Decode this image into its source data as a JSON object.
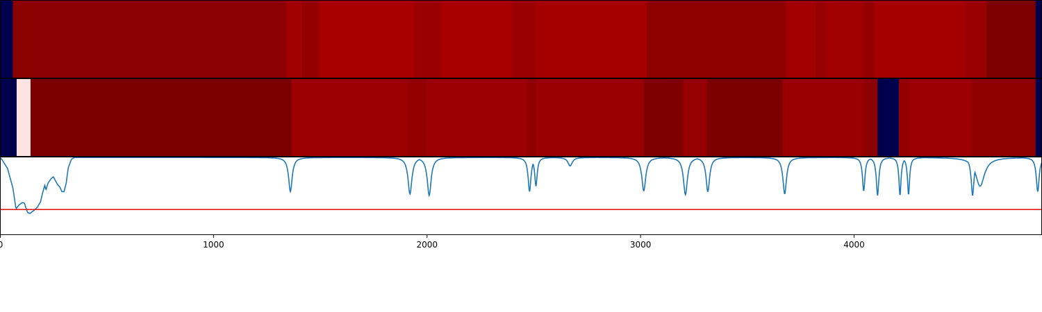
{
  "chart_data": [
    {
      "type": "heatmap",
      "title": "",
      "colormap": "seismic",
      "note": "segments: [start, end, color] along x",
      "segments": [
        [
          0,
          60,
          "#00004c"
        ],
        [
          60,
          1340,
          "#8b0000"
        ],
        [
          1340,
          1415,
          "#a00000"
        ],
        [
          1415,
          1495,
          "#930000"
        ],
        [
          1495,
          1940,
          "#a80000"
        ],
        [
          1940,
          2065,
          "#9a0000"
        ],
        [
          2065,
          2400,
          "#a80000"
        ],
        [
          2400,
          2505,
          "#9a0000"
        ],
        [
          2505,
          3030,
          "#a40000"
        ],
        [
          3030,
          3680,
          "#8c0000"
        ],
        [
          3680,
          3820,
          "#a20000"
        ],
        [
          3820,
          3865,
          "#950000"
        ],
        [
          3865,
          4045,
          "#a00000"
        ],
        [
          4045,
          4095,
          "#920000"
        ],
        [
          4095,
          4520,
          "#a50000"
        ],
        [
          4520,
          4620,
          "#990000"
        ],
        [
          4620,
          4850,
          "#7e0000"
        ],
        [
          4850,
          4880,
          "#00004c"
        ]
      ]
    },
    {
      "type": "heatmap",
      "title": "",
      "colormap": "seismic",
      "segments": [
        [
          0,
          78,
          "#00004c"
        ],
        [
          78,
          143,
          "#ffe3e3"
        ],
        [
          143,
          1365,
          "#7a0000"
        ],
        [
          1365,
          1905,
          "#9c0000"
        ],
        [
          1905,
          2000,
          "#930000"
        ],
        [
          2000,
          2470,
          "#9c0000"
        ],
        [
          2470,
          2510,
          "#8f0000"
        ],
        [
          2510,
          3015,
          "#9a0000"
        ],
        [
          3015,
          3200,
          "#7e0000"
        ],
        [
          3200,
          3310,
          "#960000"
        ],
        [
          3310,
          3665,
          "#7a0000"
        ],
        [
          3665,
          4045,
          "#9a0000"
        ],
        [
          4045,
          4110,
          "#8c0000"
        ],
        [
          4110,
          4210,
          "#00004c"
        ],
        [
          4210,
          4260,
          "#940000"
        ],
        [
          4260,
          4550,
          "#9c0000"
        ],
        [
          4550,
          4850,
          "#8f0000"
        ],
        [
          4850,
          4880,
          "#00004c"
        ]
      ]
    },
    {
      "type": "line",
      "title": "",
      "xlabel": "",
      "ylabel": "",
      "xlim": [
        0,
        4880
      ],
      "ylim": [
        0,
        1
      ],
      "xticks": [
        "0",
        "1000",
        "2000",
        "3000",
        "4000"
      ],
      "xtick_values": [
        0,
        1000,
        2000,
        3000,
        4000
      ],
      "threshold": {
        "value": 0.32,
        "color": "#e41a1c"
      },
      "series": [
        {
          "color": "#1f77b4",
          "baseline": 0.99,
          "base_segments": [
            [
              0,
              0.99
            ],
            [
              10,
              0.96
            ],
            [
              35,
              0.85
            ],
            [
              60,
              0.6
            ],
            [
              75,
              0.33
            ],
            [
              90,
              0.38
            ],
            [
              105,
              0.41
            ],
            [
              115,
              0.4
            ],
            [
              120,
              0.35
            ],
            [
              130,
              0.28
            ],
            [
              140,
              0.27
            ],
            [
              150,
              0.29
            ],
            [
              160,
              0.31
            ],
            [
              175,
              0.35
            ],
            [
              190,
              0.42
            ],
            [
              200,
              0.54
            ],
            [
              210,
              0.63
            ],
            [
              215,
              0.57
            ],
            [
              225,
              0.66
            ],
            [
              240,
              0.72
            ],
            [
              250,
              0.74
            ],
            [
              260,
              0.69
            ],
            [
              270,
              0.64
            ],
            [
              280,
              0.61
            ],
            [
              290,
              0.55
            ],
            [
              300,
              0.55
            ],
            [
              310,
              0.66
            ],
            [
              320,
              0.86
            ],
            [
              335,
              0.97
            ],
            [
              350,
              0.99
            ]
          ],
          "dips": [
            [
              1360,
              0.55,
              10
            ],
            [
              1920,
              0.52,
              11
            ],
            [
              2010,
              0.5,
              11
            ],
            [
              2480,
              0.55,
              8
            ],
            [
              2510,
              0.62,
              7
            ],
            [
              2670,
              0.88,
              12
            ],
            [
              3015,
              0.56,
              11
            ],
            [
              3210,
              0.51,
              11
            ],
            [
              3315,
              0.55,
              10
            ],
            [
              3675,
              0.52,
              10
            ],
            [
              4045,
              0.56,
              7
            ],
            [
              4110,
              0.5,
              7
            ],
            [
              4215,
              0.5,
              6
            ],
            [
              4255,
              0.51,
              6
            ],
            [
              4555,
              0.5,
              8
            ],
            [
              4590,
              0.62,
              25
            ],
            [
              4860,
              0.55,
              8
            ]
          ]
        }
      ]
    }
  ]
}
